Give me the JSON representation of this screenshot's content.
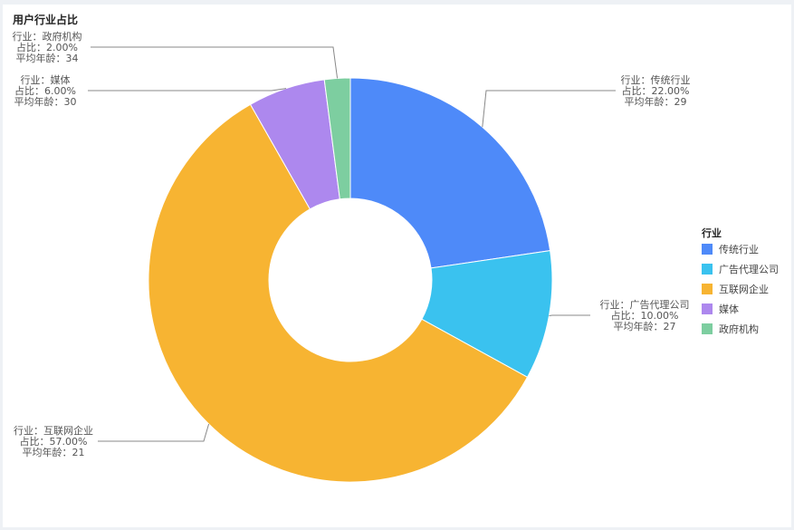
{
  "chart_data": {
    "type": "pie",
    "title": "用户行业占比",
    "legend_title": "行业",
    "legend": "right",
    "categories": [
      "传统行业",
      "广告代理公司",
      "互联网企业",
      "媒体",
      "政府机构"
    ],
    "values": [
      22,
      10,
      57,
      6,
      2
    ],
    "value_labels": [
      "22.00%",
      "10.00%",
      "57.00%",
      "6.00%",
      "2.00%"
    ],
    "avg_age": [
      29,
      27,
      21,
      30,
      34
    ],
    "colors": [
      "#4e8af9",
      "#3ac2ef",
      "#f7b432",
      "#ad88ee",
      "#7dcea0"
    ],
    "label_prefixes": {
      "category": "行业：",
      "share": "占比：",
      "age": "平均年龄："
    }
  }
}
